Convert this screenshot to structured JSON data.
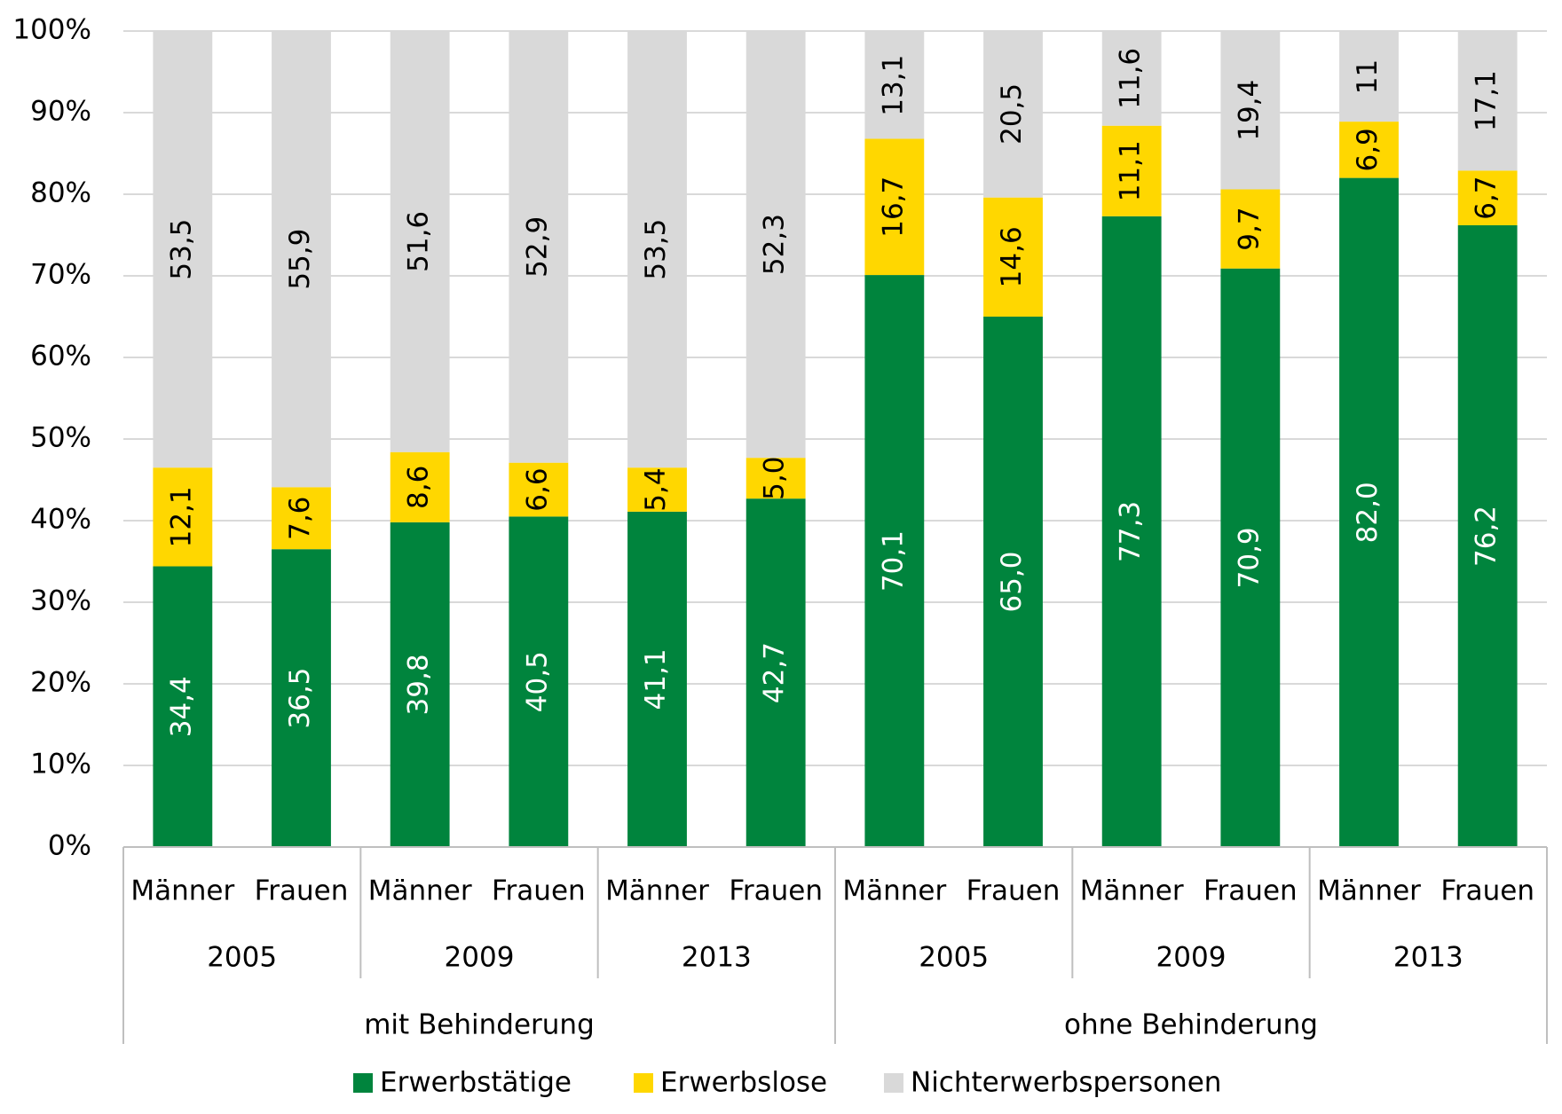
{
  "chart_data": {
    "type": "stacked-bar",
    "categories": [
      "Männer",
      "Frauen",
      "Männer",
      "Frauen",
      "Männer",
      "Frauen",
      "Männer",
      "Frauen",
      "Männer",
      "Frauen",
      "Männer",
      "Frauen"
    ],
    "groups": [
      {
        "name": "mit Behinderung",
        "subgroups": [
          "2005",
          "2009",
          "2013"
        ]
      },
      {
        "name": "ohne Behinderung",
        "subgroups": [
          "2005",
          "2009",
          "2013"
        ]
      }
    ],
    "series": [
      {
        "name": "Erwerbstätige",
        "color": "#00843d",
        "label_color": "#ffffff",
        "values": [
          34.4,
          36.5,
          39.8,
          40.5,
          41.1,
          42.7,
          70.1,
          65.0,
          77.3,
          70.9,
          82.0,
          76.2
        ],
        "value_labels": [
          "34,4",
          "36,5",
          "39,8",
          "40,5",
          "41,1",
          "42,7",
          "70,1",
          "65,0",
          "77,3",
          "70,9",
          "82,0",
          "76,2"
        ]
      },
      {
        "name": "Erwerbslose",
        "color": "#ffd700",
        "label_color": "#000000",
        "values": [
          12.1,
          7.6,
          8.6,
          6.6,
          5.4,
          5.0,
          16.7,
          14.6,
          11.1,
          9.7,
          6.9,
          6.7
        ],
        "value_labels": [
          "12,1",
          "7,6",
          "8,6",
          "6,6",
          "5,4",
          "5,0",
          "16,7",
          "14,6",
          "11,1",
          "9,7",
          "6,9",
          "6,7"
        ]
      },
      {
        "name": "Nichterwerbspersonen",
        "color": "#d9d9d9",
        "label_color": "#000000",
        "values": [
          53.5,
          55.9,
          51.6,
          52.9,
          53.5,
          52.3,
          13.1,
          20.5,
          11.6,
          19.4,
          11,
          17.1
        ],
        "value_labels": [
          "53,5",
          "55,9",
          "51,6",
          "52,9",
          "53,5",
          "52,3",
          "13,1",
          "20,5",
          "11,6",
          "19,4",
          "11",
          "17,1"
        ]
      }
    ],
    "ylim": [
      0,
      100
    ],
    "yticks": [
      {
        "value": 0,
        "label": "0%"
      },
      {
        "value": 10,
        "label": "10%"
      },
      {
        "value": 20,
        "label": "20%"
      },
      {
        "value": 30,
        "label": "30%"
      },
      {
        "value": 40,
        "label": "40%"
      },
      {
        "value": 50,
        "label": "50%"
      },
      {
        "value": 60,
        "label": "60%"
      },
      {
        "value": 70,
        "label": "70%"
      },
      {
        "value": 80,
        "label": "80%"
      },
      {
        "value": 90,
        "label": "90%"
      },
      {
        "value": 100,
        "label": "100%"
      }
    ],
    "grid": true,
    "legend": "bottom"
  }
}
